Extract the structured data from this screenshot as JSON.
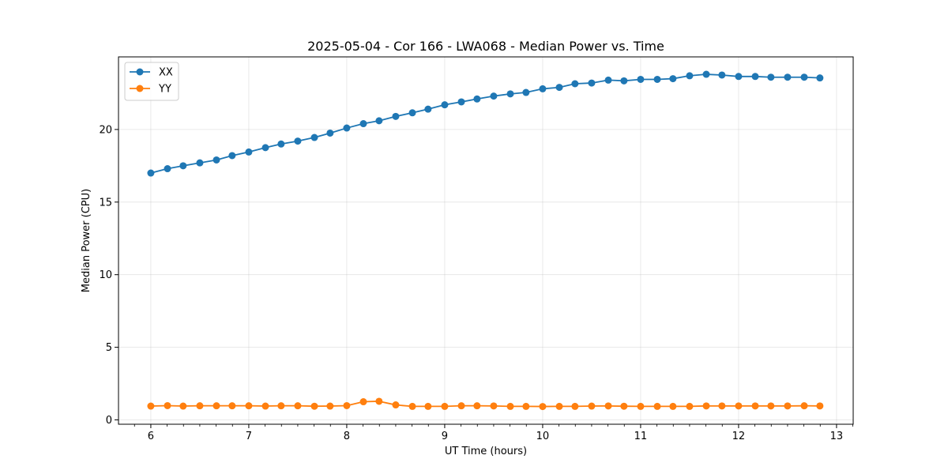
{
  "chart_data": {
    "type": "line",
    "title": "2025-05-04 - Cor 166 - LWA068 - Median Power vs. Time",
    "xlabel": "UT Time (hours)",
    "ylabel": "Median Power (CPU)",
    "xlim": [
      5.67,
      13.17
    ],
    "ylim": [
      -0.3,
      25.0
    ],
    "xticks": [
      6,
      7,
      8,
      9,
      10,
      11,
      12,
      13
    ],
    "xtick_labels": [
      "6",
      "7",
      "8",
      "9",
      "10",
      "11",
      "12",
      "13"
    ],
    "yticks": [
      0,
      5,
      10,
      15,
      20
    ],
    "ytick_labels": [
      "0",
      "5",
      "10",
      "15",
      "20"
    ],
    "grid": true,
    "legend_location": "top-left",
    "x": [
      6.0,
      6.17,
      6.33,
      6.5,
      6.67,
      6.83,
      7.0,
      7.17,
      7.33,
      7.5,
      7.67,
      7.83,
      8.0,
      8.17,
      8.33,
      8.5,
      8.67,
      8.83,
      9.0,
      9.17,
      9.33,
      9.5,
      9.67,
      9.83,
      10.0,
      10.17,
      10.33,
      10.5,
      10.67,
      10.83,
      11.0,
      11.17,
      11.33,
      11.5,
      11.67,
      11.83,
      12.0,
      12.17,
      12.33,
      12.5,
      12.67,
      12.83
    ],
    "series": [
      {
        "name": "XX",
        "color": "#1f77b4",
        "values": [
          17.0,
          17.3,
          17.5,
          17.7,
          17.9,
          18.2,
          18.45,
          18.75,
          19.0,
          19.2,
          19.45,
          19.75,
          20.1,
          20.4,
          20.6,
          20.9,
          21.15,
          21.4,
          21.7,
          21.9,
          22.1,
          22.3,
          22.45,
          22.55,
          22.8,
          22.9,
          23.15,
          23.2,
          23.4,
          23.35,
          23.45,
          23.45,
          23.5,
          23.7,
          23.8,
          23.75,
          23.65,
          23.65,
          23.6,
          23.6,
          23.6,
          23.55
        ]
      },
      {
        "name": "YY",
        "color": "#ff7f0e",
        "values": [
          0.95,
          0.98,
          0.95,
          0.97,
          0.97,
          0.97,
          0.97,
          0.95,
          0.97,
          0.97,
          0.94,
          0.95,
          0.98,
          1.25,
          1.28,
          1.03,
          0.93,
          0.93,
          0.93,
          0.97,
          0.97,
          0.96,
          0.93,
          0.93,
          0.92,
          0.93,
          0.93,
          0.95,
          0.96,
          0.94,
          0.93,
          0.93,
          0.93,
          0.93,
          0.96,
          0.96,
          0.96,
          0.96,
          0.96,
          0.96,
          0.97,
          0.96
        ]
      }
    ]
  }
}
